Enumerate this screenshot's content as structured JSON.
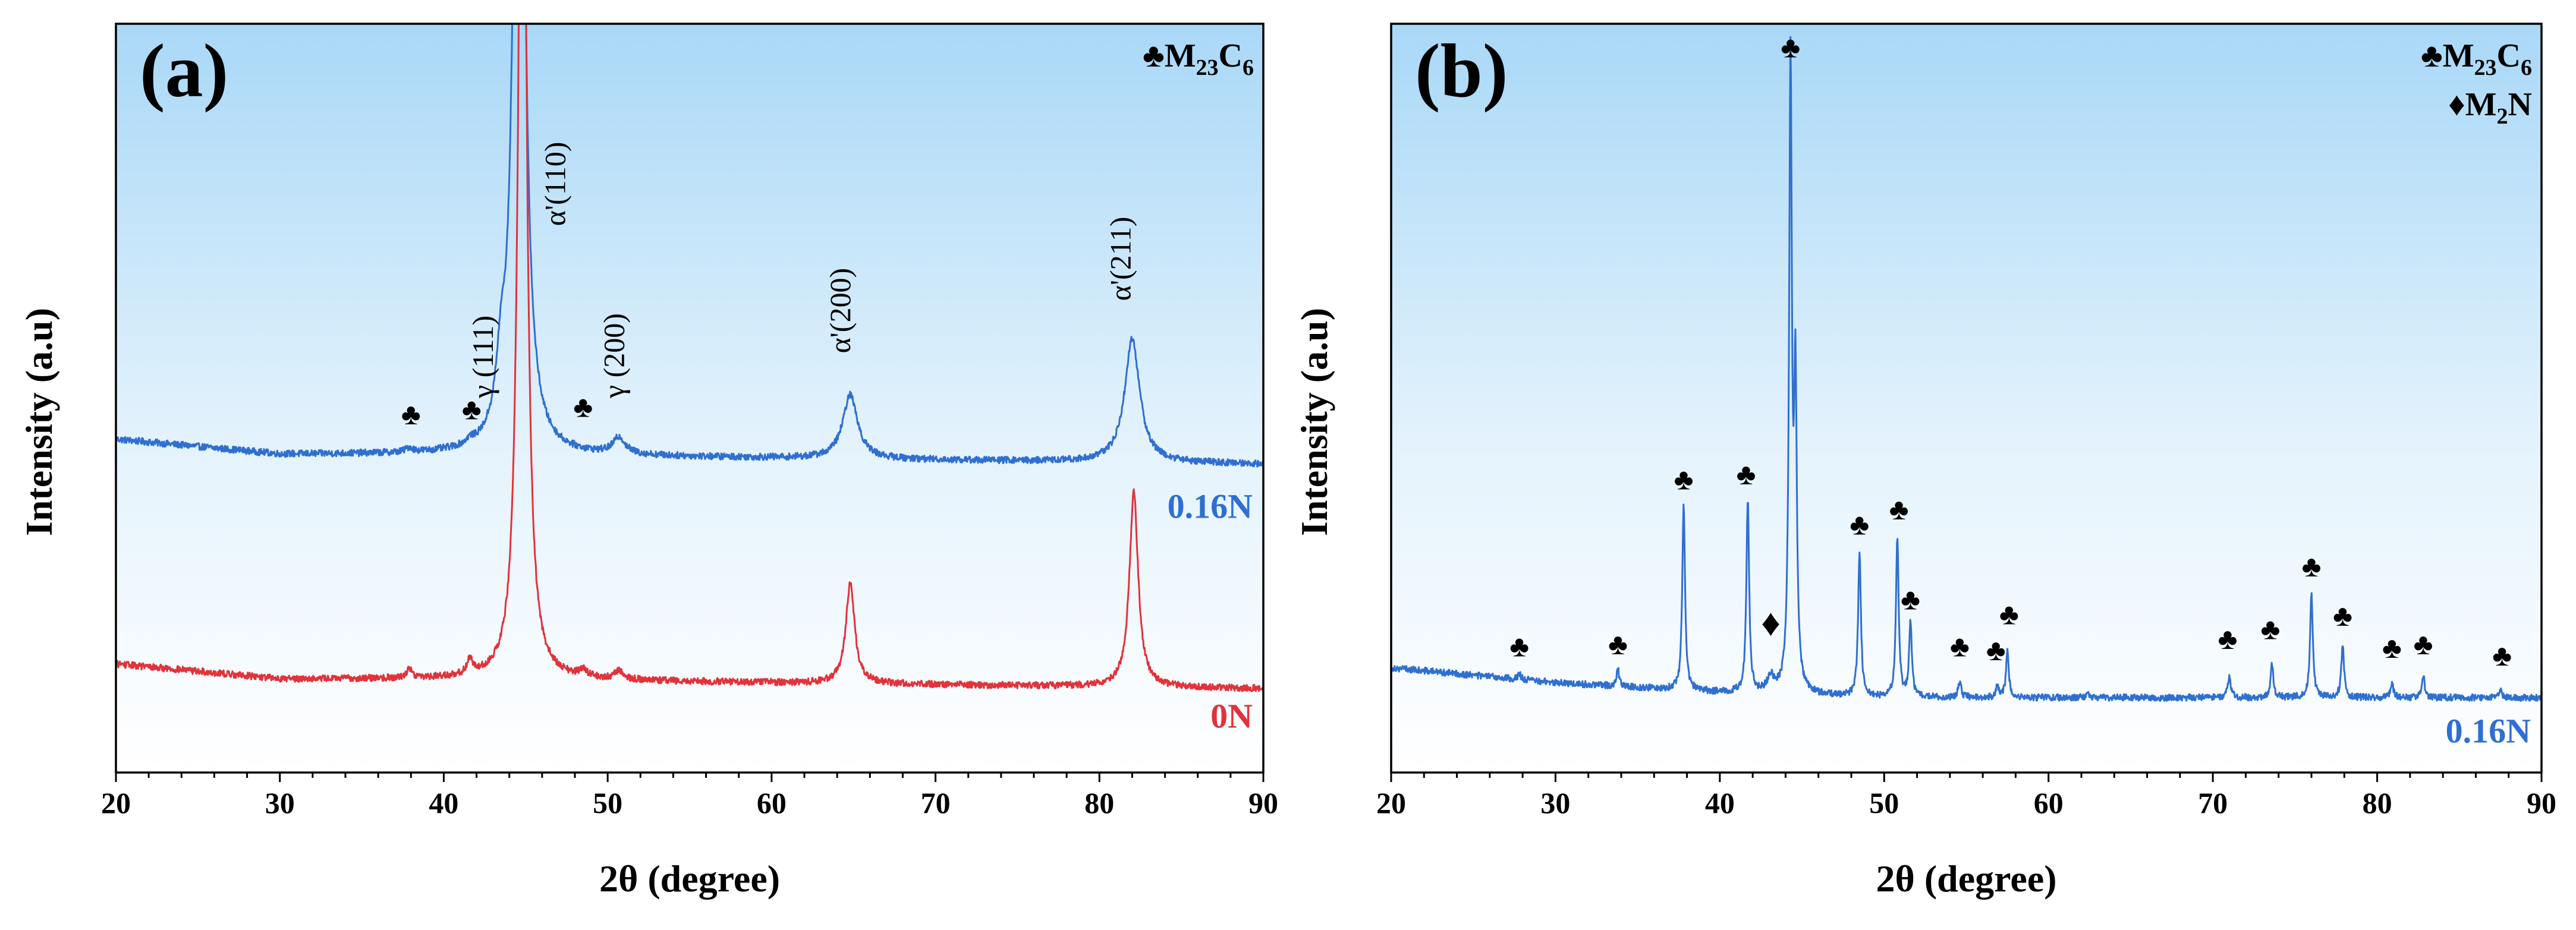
{
  "chart_data": [
    {
      "type": "line",
      "panel_label": "(a)",
      "xlabel": "2θ (degree)",
      "ylabel": "Intensity (a.u)",
      "xlim": [
        20,
        90
      ],
      "ylim": [
        0,
        1.0
      ],
      "x_ticks": [
        20,
        30,
        40,
        50,
        60,
        70,
        80,
        90
      ],
      "grid": false,
      "legend": [
        {
          "symbol": "♣",
          "main": "M",
          "sub": "23",
          "main2": "C",
          "sub2": "6"
        }
      ],
      "series": [
        {
          "name": "0.16N",
          "color": "#2f6fd0",
          "baseline": [
            [
              20,
              0.445
            ],
            [
              30,
              0.425
            ],
            [
              40,
              0.425
            ],
            [
              90,
              0.412
            ]
          ],
          "peaks": [
            {
              "x": 37.9,
              "h": 0.006,
              "w": 0.25
            },
            {
              "x": 41.6,
              "h": 0.006,
              "w": 0.25
            },
            {
              "x": 43.5,
              "h": 0.08,
              "w": 0.35
            },
            {
              "x": 44.6,
              "h": 1.5,
              "w": 0.33
            },
            {
              "x": 50.7,
              "h": 0.022,
              "w": 0.45
            },
            {
              "x": 64.8,
              "h": 0.085,
              "w": 0.55
            },
            {
              "x": 82.0,
              "h": 0.165,
              "w": 0.55
            }
          ]
        },
        {
          "name": "0N",
          "color": "#e2323a",
          "baseline": [
            [
              20,
              0.145
            ],
            [
              30,
              0.125
            ],
            [
              40,
              0.125
            ],
            [
              90,
              0.112
            ]
          ],
          "peaks": [
            {
              "x": 37.9,
              "h": 0.012,
              "w": 0.2
            },
            {
              "x": 41.6,
              "h": 0.02,
              "w": 0.2
            },
            {
              "x": 44.8,
              "h": 1.5,
              "w": 0.27
            },
            {
              "x": 48.5,
              "h": 0.01,
              "w": 0.25
            },
            {
              "x": 50.7,
              "h": 0.012,
              "w": 0.3
            },
            {
              "x": 64.8,
              "h": 0.135,
              "w": 0.32
            },
            {
              "x": 82.1,
              "h": 0.26,
              "w": 0.32
            }
          ]
        }
      ],
      "annotations": [
        {
          "text": "γ (111)",
          "x": 43.0,
          "y": 0.5,
          "rotate": true
        },
        {
          "text": "α'(110)",
          "x": 47.4,
          "y": 0.73,
          "rotate": true
        },
        {
          "text": "γ (200)",
          "x": 51.0,
          "y": 0.5,
          "rotate": true
        },
        {
          "text": "α'(200)",
          "x": 64.8,
          "y": 0.56,
          "rotate": true
        },
        {
          "text": "α'(211)",
          "x": 81.9,
          "y": 0.63,
          "rotate": true
        }
      ],
      "markers": [
        {
          "symbol": "♣",
          "x": 38.0,
          "y": 0.465
        },
        {
          "symbol": "♣",
          "x": 41.7,
          "y": 0.472
        },
        {
          "symbol": "♣",
          "x": 48.5,
          "y": 0.475
        }
      ],
      "series_labels": [
        {
          "text": "0.16N",
          "series": 0,
          "y": 0.34
        },
        {
          "text": "0N",
          "series": 1,
          "y": 0.06
        }
      ]
    },
    {
      "type": "line",
      "panel_label": "(b)",
      "xlabel": "2θ (degree)",
      "ylabel": "Intensity (a.u)",
      "xlim": [
        20,
        90
      ],
      "ylim": [
        0,
        1.0
      ],
      "x_ticks": [
        20,
        30,
        40,
        50,
        60,
        70,
        80,
        90
      ],
      "grid": false,
      "legend": [
        {
          "symbol": "♣",
          "main": "M",
          "sub": "23",
          "main2": "C",
          "sub2": "6"
        },
        {
          "symbol": "♦",
          "main": "M",
          "sub": "2",
          "main2": "N",
          "sub2": ""
        }
      ],
      "series": [
        {
          "name": "0.16N",
          "color": "#2f6fd0",
          "baseline": [
            [
              20,
              0.14
            ],
            [
              30,
              0.12
            ],
            [
              40,
              0.107
            ],
            [
              50,
              0.1
            ],
            [
              90,
              0.1
            ]
          ],
          "peaks": [
            {
              "x": 27.8,
              "h": 0.008,
              "w": 0.1
            },
            {
              "x": 33.8,
              "h": 0.022,
              "w": 0.1
            },
            {
              "x": 37.8,
              "h": 0.25,
              "w": 0.1
            },
            {
              "x": 41.7,
              "h": 0.258,
              "w": 0.1
            },
            {
              "x": 43.1,
              "h": 0.02,
              "w": 0.25
            },
            {
              "x": 44.3,
              "h": 0.835,
              "w": 0.1
            },
            {
              "x": 44.6,
              "h": 0.4,
              "w": 0.1
            },
            {
              "x": 48.5,
              "h": 0.195,
              "w": 0.1
            },
            {
              "x": 50.8,
              "h": 0.215,
              "w": 0.1
            },
            {
              "x": 51.6,
              "h": 0.1,
              "w": 0.1
            },
            {
              "x": 54.6,
              "h": 0.022,
              "w": 0.1
            },
            {
              "x": 56.9,
              "h": 0.016,
              "w": 0.1
            },
            {
              "x": 57.5,
              "h": 0.062,
              "w": 0.1
            },
            {
              "x": 62.4,
              "h": 0.008,
              "w": 0.1
            },
            {
              "x": 71.0,
              "h": 0.03,
              "w": 0.1
            },
            {
              "x": 73.6,
              "h": 0.045,
              "w": 0.1
            },
            {
              "x": 76.0,
              "h": 0.138,
              "w": 0.1
            },
            {
              "x": 77.9,
              "h": 0.072,
              "w": 0.1
            },
            {
              "x": 80.9,
              "h": 0.02,
              "w": 0.1
            },
            {
              "x": 82.8,
              "h": 0.03,
              "w": 0.1
            },
            {
              "x": 87.5,
              "h": 0.01,
              "w": 0.1
            }
          ]
        }
      ],
      "annotations": [],
      "markers": [
        {
          "symbol": "♣",
          "x": 27.8,
          "y": 0.155
        },
        {
          "symbol": "♣",
          "x": 33.8,
          "y": 0.158
        },
        {
          "symbol": "♣",
          "x": 37.8,
          "y": 0.378
        },
        {
          "symbol": "♣",
          "x": 41.6,
          "y": 0.385
        },
        {
          "symbol": "♦",
          "x": 43.1,
          "y": 0.183
        },
        {
          "symbol": "♣",
          "x": 44.3,
          "y": 0.955
        },
        {
          "symbol": "♣",
          "x": 48.5,
          "y": 0.318
        },
        {
          "symbol": "♣",
          "x": 50.9,
          "y": 0.338
        },
        {
          "symbol": "♣",
          "x": 51.6,
          "y": 0.218
        },
        {
          "symbol": "♣",
          "x": 54.6,
          "y": 0.155
        },
        {
          "symbol": "♣",
          "x": 56.8,
          "y": 0.15
        },
        {
          "symbol": "♣",
          "x": 57.6,
          "y": 0.198
        },
        {
          "symbol": "♣",
          "x": 70.9,
          "y": 0.165
        },
        {
          "symbol": "♣",
          "x": 73.5,
          "y": 0.178
        },
        {
          "symbol": "♣",
          "x": 76.0,
          "y": 0.262
        },
        {
          "symbol": "♣",
          "x": 77.9,
          "y": 0.196
        },
        {
          "symbol": "♣",
          "x": 80.9,
          "y": 0.153
        },
        {
          "symbol": "♣",
          "x": 82.8,
          "y": 0.158
        },
        {
          "symbol": "♣",
          "x": 87.6,
          "y": 0.143
        }
      ],
      "series_labels": [
        {
          "text": "0.16N",
          "series": 0,
          "y": 0.04
        }
      ]
    }
  ]
}
